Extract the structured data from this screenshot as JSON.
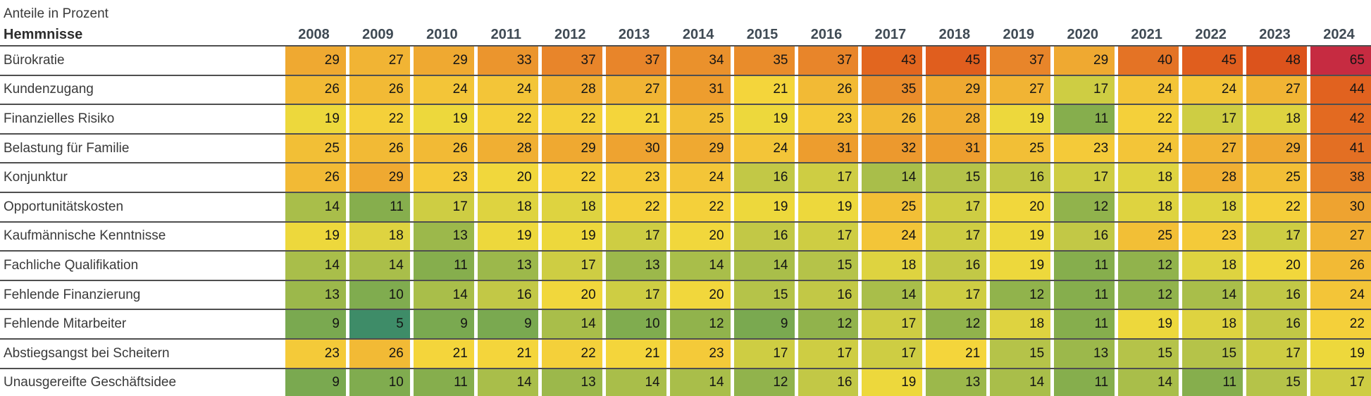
{
  "title": "Anteile in Prozent",
  "chart_data": {
    "type": "heatmap",
    "title": "Anteile in Prozent",
    "row_header": "Hemmnisse",
    "columns": [
      "2008",
      "2009",
      "2010",
      "2011",
      "2012",
      "2013",
      "2014",
      "2015",
      "2016",
      "2017",
      "2018",
      "2019",
      "2020",
      "2021",
      "2022",
      "2023",
      "2024"
    ],
    "rows": [
      {
        "label": "Bürokratie",
        "values": [
          29,
          27,
          29,
          33,
          37,
          37,
          34,
          35,
          37,
          43,
          45,
          37,
          29,
          40,
          45,
          48,
          65
        ]
      },
      {
        "label": "Kundenzugang",
        "values": [
          26,
          26,
          24,
          24,
          28,
          27,
          31,
          21,
          26,
          35,
          29,
          27,
          17,
          24,
          24,
          27,
          44
        ]
      },
      {
        "label": "Finanzielles Risiko",
        "values": [
          19,
          22,
          19,
          22,
          22,
          21,
          25,
          19,
          23,
          26,
          28,
          19,
          11,
          22,
          17,
          18,
          42
        ]
      },
      {
        "label": "Belastung für Familie",
        "values": [
          25,
          26,
          26,
          28,
          29,
          30,
          29,
          24,
          31,
          32,
          31,
          25,
          23,
          24,
          27,
          29,
          41
        ]
      },
      {
        "label": "Konjunktur",
        "values": [
          26,
          29,
          23,
          20,
          22,
          23,
          24,
          16,
          17,
          14,
          15,
          16,
          17,
          18,
          28,
          25,
          38
        ]
      },
      {
        "label": "Opportunitätskosten",
        "values": [
          14,
          11,
          17,
          18,
          18,
          22,
          22,
          19,
          19,
          25,
          17,
          20,
          12,
          18,
          18,
          22,
          30
        ]
      },
      {
        "label": "Kaufmännische Kenntnisse",
        "values": [
          19,
          18,
          13,
          19,
          19,
          17,
          20,
          16,
          17,
          24,
          17,
          19,
          16,
          25,
          23,
          17,
          27
        ]
      },
      {
        "label": "Fachliche Qualifikation",
        "values": [
          14,
          14,
          11,
          13,
          17,
          13,
          14,
          14,
          15,
          18,
          16,
          19,
          11,
          12,
          18,
          20,
          26
        ]
      },
      {
        "label": "Fehlende Finanzierung",
        "values": [
          13,
          10,
          14,
          16,
          20,
          17,
          20,
          15,
          16,
          14,
          17,
          12,
          11,
          12,
          14,
          16,
          24
        ]
      },
      {
        "label": "Fehlende Mitarbeiter",
        "values": [
          9,
          5,
          9,
          9,
          14,
          10,
          12,
          9,
          12,
          17,
          12,
          18,
          11,
          19,
          18,
          16,
          22
        ]
      },
      {
        "label": "Abstiegsangst bei Scheitern",
        "values": [
          23,
          26,
          21,
          21,
          22,
          21,
          23,
          17,
          17,
          17,
          21,
          15,
          13,
          15,
          15,
          17,
          19
        ]
      },
      {
        "label": "Unausgereifte Geschäftsidee",
        "values": [
          9,
          10,
          11,
          14,
          13,
          14,
          14,
          12,
          16,
          19,
          13,
          14,
          11,
          14,
          11,
          15,
          17
        ]
      }
    ],
    "value_range": [
      5,
      65
    ],
    "legend_position": "none",
    "color_scale_stops": [
      [
        5,
        "#3E8C68"
      ],
      [
        9,
        "#7AA950"
      ],
      [
        11,
        "#86AE4D"
      ],
      [
        13,
        "#9CB84B"
      ],
      [
        15,
        "#B5C349"
      ],
      [
        17,
        "#CECD43"
      ],
      [
        19,
        "#EDD83C"
      ],
      [
        21,
        "#F4D53B"
      ],
      [
        23,
        "#F4CA39"
      ],
      [
        25,
        "#F2BF36"
      ],
      [
        27,
        "#F1B434"
      ],
      [
        29,
        "#EFA931"
      ],
      [
        31,
        "#ED9D2E"
      ],
      [
        33,
        "#EB952D"
      ],
      [
        35,
        "#E98C2B"
      ],
      [
        37,
        "#E8852A"
      ],
      [
        40,
        "#E47325"
      ],
      [
        43,
        "#E2661F"
      ],
      [
        45,
        "#E05E1E"
      ],
      [
        48,
        "#DC531C"
      ],
      [
        65,
        "#C62B41"
      ]
    ],
    "colors": {
      "row_separator": "#4F4F4F",
      "bottom_border": "#222222",
      "label_text": "#3A3A3A",
      "year_header_text": "#3F4A54",
      "cell_text": "#141414",
      "background": "#FFFFFF"
    }
  }
}
